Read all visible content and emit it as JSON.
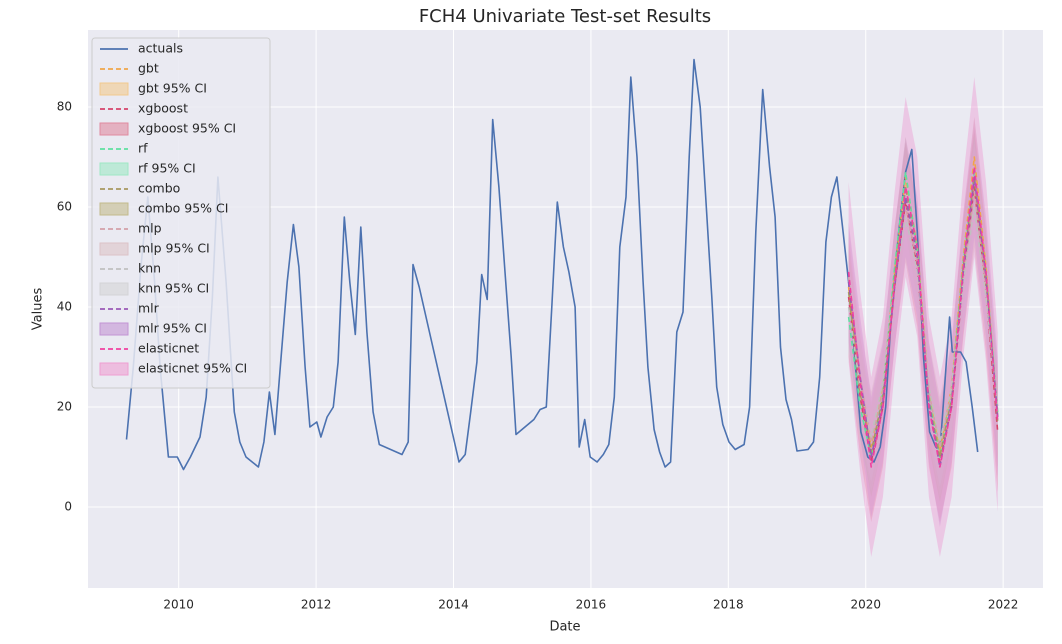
{
  "chart_data": {
    "type": "line",
    "title": "FCH4 Univariate Test-set Results",
    "x_label": "Date",
    "y_label": "Values",
    "xlim": [
      2008.68,
      2022.58
    ],
    "ylim": [
      -16.2,
      95.4
    ],
    "xticks": [
      2010,
      2012,
      2014,
      2016,
      2018,
      2020,
      2022
    ],
    "yticks": [
      0,
      20,
      40,
      60,
      80
    ],
    "grid": true,
    "legend": "upper-left",
    "series": [
      {
        "name": "actuals",
        "color": "#4c72b0",
        "x": [
          2009.24,
          2009.34,
          2009.45,
          2009.55,
          2009.65,
          2009.73,
          2009.85,
          2009.98,
          2010.07,
          2010.17,
          2010.31,
          2010.4,
          2010.49,
          2010.57,
          2010.69,
          2010.81,
          2010.89,
          2010.98,
          2011.07,
          2011.16,
          2011.24,
          2011.32,
          2011.4,
          2011.49,
          2011.58,
          2011.67,
          2011.75,
          2011.84,
          2011.91,
          2012.01,
          2012.07,
          2012.16,
          2012.25,
          2012.32,
          2012.41,
          2012.49,
          2012.57,
          2012.65,
          2012.74,
          2012.83,
          2012.92,
          2013.25,
          2013.34,
          2013.41,
          2013.5,
          2014.08,
          2014.17,
          2014.25,
          2014.34,
          2014.41,
          2014.49,
          2014.57,
          2014.66,
          2014.75,
          2014.84,
          2014.91,
          2015.17,
          2015.26,
          2015.35,
          2015.43,
          2015.51,
          2015.6,
          2015.68,
          2015.77,
          2015.83,
          2015.91,
          2015.99,
          2016.09,
          2016.18,
          2016.26,
          2016.34,
          2016.42,
          2016.51,
          2016.58,
          2016.67,
          2016.76,
          2016.83,
          2016.92,
          2017.0,
          2017.08,
          2017.16,
          2017.25,
          2017.34,
          2017.43,
          2017.5,
          2017.59,
          2017.67,
          2017.76,
          2017.83,
          2017.92,
          2018.01,
          2018.1,
          2018.23,
          2018.31,
          2018.4,
          2018.5,
          2018.6,
          2018.68,
          2018.76,
          2018.84,
          2018.92,
          2019.0,
          2019.16,
          2019.24,
          2019.33,
          2019.42,
          2019.5,
          2019.58,
          2019.67,
          2019.75,
          2019.84,
          2019.93,
          2020.03,
          2020.12,
          2020.21,
          2020.29,
          2020.38,
          2020.48,
          2020.58,
          2020.67,
          2020.75,
          2020.84,
          2020.93,
          2021.02,
          2021.09,
          2021.22,
          2021.26,
          2021.38,
          2021.46,
          2021.55,
          2021.63
        ],
        "values": [
          13.5,
          28,
          48,
          62,
          45,
          28,
          10,
          10,
          7.5,
          10,
          14,
          22,
          42,
          66,
          45,
          19,
          13,
          10,
          9,
          8,
          13,
          23,
          14.5,
          30,
          45,
          56.5,
          48,
          28,
          16,
          17,
          14,
          18,
          20,
          29,
          58,
          45,
          34.5,
          56,
          35,
          19,
          12.5,
          10.5,
          13,
          48.5,
          44,
          9,
          10.5,
          19,
          29,
          46.5,
          41.5,
          77.5,
          64,
          47,
          30,
          14.5,
          17.5,
          19.5,
          20,
          40,
          61,
          52,
          47,
          40,
          12,
          17.5,
          10,
          9,
          10.5,
          12.5,
          22,
          52,
          62,
          86,
          70,
          45,
          28,
          15.5,
          11,
          8,
          9,
          35,
          39,
          70,
          89.5,
          80,
          62,
          42,
          24,
          16.5,
          13,
          11.5,
          12.5,
          20,
          55,
          83.5,
          68,
          58,
          32,
          21.5,
          17.5,
          11.2,
          11.5,
          13,
          26,
          53,
          62,
          66,
          55,
          45,
          30,
          15,
          10,
          9,
          12,
          20,
          40,
          55,
          67,
          71.5,
          55,
          30,
          15,
          12,
          13,
          38,
          31,
          31,
          29,
          20,
          11
        ]
      },
      {
        "name": "gbt",
        "color": "#f0a54a",
        "ci_name": "gbt 95% CI",
        "ci_color": "#f2c98e",
        "x": [
          2019.75,
          2019.92,
          2020.08,
          2020.25,
          2020.42,
          2020.58,
          2020.75,
          2020.92,
          2021.08,
          2021.25,
          2021.42,
          2021.58,
          2021.75,
          2021.92
        ],
        "values": [
          44,
          24,
          12,
          24,
          47,
          66,
          52,
          23,
          11,
          24,
          50,
          70,
          48,
          18
        ],
        "ci_lower": [
          36,
          16,
          4,
          16,
          39,
          58,
          44,
          15,
          3,
          16,
          42,
          62,
          40,
          10
        ],
        "ci_upper": [
          52,
          32,
          20,
          32,
          55,
          74,
          60,
          31,
          19,
          32,
          58,
          78,
          56,
          26
        ]
      },
      {
        "name": "xgboost",
        "color": "#d6446b",
        "ci_name": "xgboost 95% CI",
        "ci_color": "#e08aa0",
        "x": [
          2019.75,
          2019.92,
          2020.08,
          2020.25,
          2020.42,
          2020.58,
          2020.75,
          2020.92,
          2021.08,
          2021.25,
          2021.42,
          2021.58,
          2021.75,
          2021.92
        ],
        "values": [
          42,
          22,
          9,
          20,
          44,
          61,
          48,
          20,
          9,
          20,
          46,
          64,
          43,
          15
        ],
        "ci_lower": [
          30,
          10,
          -3,
          8,
          32,
          49,
          36,
          8,
          -3,
          8,
          34,
          52,
          31,
          3
        ],
        "ci_upper": [
          54,
          34,
          21,
          32,
          56,
          73,
          60,
          32,
          21,
          32,
          58,
          76,
          55,
          27
        ]
      },
      {
        "name": "rf",
        "color": "#5fe0a0",
        "ci_name": "rf 95% CI",
        "ci_color": "#9fe8c4",
        "x": [
          2019.75,
          2019.92,
          2020.08,
          2020.25,
          2020.42,
          2020.58,
          2020.75,
          2020.92,
          2021.08,
          2021.25,
          2021.42,
          2021.58,
          2021.75,
          2021.92
        ],
        "values": [
          38,
          20,
          10,
          23,
          48,
          67,
          51,
          22,
          10,
          23,
          49,
          67,
          47,
          19
        ],
        "ci_lower": [
          31,
          13,
          3,
          16,
          41,
          60,
          44,
          15,
          3,
          16,
          42,
          60,
          40,
          12
        ],
        "ci_upper": [
          45,
          27,
          17,
          30,
          55,
          74,
          58,
          29,
          17,
          30,
          56,
          74,
          54,
          26
        ]
      },
      {
        "name": "combo",
        "color": "#a89860",
        "ci_name": "combo 95% CI",
        "ci_color": "#c3bb8c",
        "x": [
          2019.75,
          2019.92,
          2020.08,
          2020.25,
          2020.42,
          2020.58,
          2020.75,
          2020.92,
          2021.08,
          2021.25,
          2021.42,
          2021.58,
          2021.75,
          2021.92
        ],
        "values": [
          43,
          23,
          11,
          22,
          46,
          64,
          50,
          21,
          10,
          22,
          48,
          66,
          45,
          17
        ],
        "ci_lower": [
          34,
          14,
          2,
          13,
          37,
          55,
          41,
          12,
          1,
          13,
          39,
          57,
          36,
          8
        ],
        "ci_upper": [
          52,
          32,
          20,
          31,
          55,
          73,
          59,
          30,
          19,
          31,
          57,
          75,
          54,
          26
        ]
      },
      {
        "name": "mlp",
        "color": "#d4a0a8",
        "ci_name": "mlp 95% CI",
        "ci_color": "#dcc3c7",
        "x": [
          2019.75,
          2019.92,
          2020.08,
          2020.25,
          2020.42,
          2020.58,
          2020.75,
          2020.92,
          2021.08,
          2021.25,
          2021.42,
          2021.58,
          2021.75,
          2021.92
        ],
        "values": [
          46,
          26,
          13,
          23,
          44,
          60,
          49,
          23,
          12,
          23,
          46,
          63,
          44,
          18
        ],
        "ci_lower": [
          36,
          16,
          3,
          13,
          34,
          50,
          39,
          13,
          2,
          13,
          36,
          53,
          34,
          8
        ],
        "ci_upper": [
          56,
          36,
          23,
          33,
          54,
          70,
          59,
          33,
          22,
          33,
          56,
          73,
          54,
          28
        ]
      },
      {
        "name": "knn",
        "color": "#c0c0c0",
        "ci_name": "knn 95% CI",
        "ci_color": "#d4d4d6",
        "x": [
          2019.75,
          2019.92,
          2020.08,
          2020.25,
          2020.42,
          2020.58,
          2020.75,
          2020.92,
          2021.08,
          2021.25,
          2021.42,
          2021.58,
          2021.75,
          2021.92
        ],
        "values": [
          40,
          24,
          14,
          25,
          45,
          58,
          47,
          24,
          13,
          24,
          45,
          60,
          42,
          20
        ],
        "ci_lower": [
          31,
          15,
          5,
          16,
          36,
          49,
          38,
          15,
          4,
          15,
          36,
          51,
          33,
          11
        ],
        "ci_upper": [
          49,
          33,
          23,
          34,
          54,
          67,
          56,
          33,
          22,
          33,
          54,
          69,
          51,
          29
        ]
      },
      {
        "name": "mlr",
        "color": "#9b59b6",
        "ci_name": "mlr 95% CI",
        "ci_color": "#c394d4",
        "x": [
          2019.75,
          2019.92,
          2020.08,
          2020.25,
          2020.42,
          2020.58,
          2020.75,
          2020.92,
          2021.08,
          2021.25,
          2021.42,
          2021.58,
          2021.75,
          2021.92
        ],
        "values": [
          45,
          26,
          10,
          21,
          44,
          62,
          50,
          21,
          8,
          21,
          47,
          66,
          46,
          18
        ],
        "ci_lower": [
          33,
          14,
          -2,
          9,
          32,
          50,
          38,
          9,
          -4,
          9,
          35,
          54,
          34,
          6
        ],
        "ci_upper": [
          57,
          38,
          22,
          33,
          56,
          74,
          62,
          33,
          20,
          33,
          59,
          78,
          58,
          30
        ]
      },
      {
        "name": "elasticnet",
        "color": "#f040a0",
        "ci_name": "elasticnet 95% CI",
        "ci_color": "#ee9ed2",
        "x": [
          2019.75,
          2019.92,
          2020.08,
          2020.25,
          2020.42,
          2020.58,
          2020.75,
          2020.92,
          2021.08,
          2021.25,
          2021.42,
          2021.58,
          2021.75,
          2021.92
        ],
        "values": [
          47,
          25,
          8,
          20,
          45,
          64,
          52,
          20,
          8,
          20,
          48,
          68,
          47,
          17
        ],
        "ci_lower": [
          29,
          7,
          -10,
          2,
          27,
          46,
          34,
          2,
          -10,
          2,
          30,
          50,
          29,
          -1
        ],
        "ci_upper": [
          65,
          43,
          26,
          38,
          63,
          82,
          70,
          38,
          26,
          38,
          66,
          86,
          65,
          35
        ]
      }
    ]
  }
}
